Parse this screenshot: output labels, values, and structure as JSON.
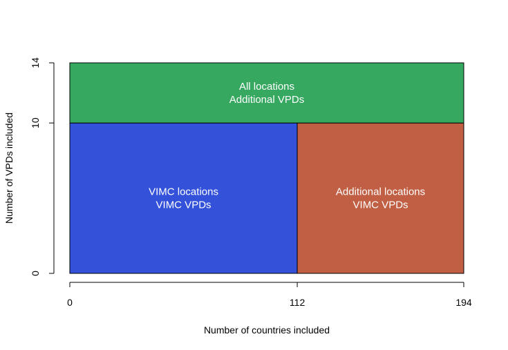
{
  "chart_data": {
    "type": "mosaic",
    "title": "",
    "xlabel": "Number of countries included",
    "ylabel": "Number of VPDs included",
    "xlim": [
      0,
      194
    ],
    "ylim": [
      0,
      14
    ],
    "x_ticks": [
      {
        "value": 0,
        "label": "0"
      },
      {
        "value": 112,
        "label": "112"
      },
      {
        "value": 194,
        "label": "194"
      }
    ],
    "y_ticks": [
      {
        "value": 0,
        "label": "0"
      },
      {
        "value": 10,
        "label": "10"
      },
      {
        "value": 14,
        "label": "14"
      }
    ],
    "regions": [
      {
        "x": [
          0,
          112
        ],
        "y": [
          0,
          10
        ],
        "color": "#3352d9",
        "label_lines": [
          "VIMC locations",
          "VIMC VPDs"
        ]
      },
      {
        "x": [
          112,
          194
        ],
        "y": [
          0,
          10
        ],
        "color": "#c05f44",
        "label_lines": [
          "Additional locations",
          "VIMC VPDs"
        ]
      },
      {
        "x": [
          0,
          194
        ],
        "y": [
          10,
          14
        ],
        "color": "#36a860",
        "label_lines": [
          "All locations",
          "Additional VPDs"
        ]
      }
    ],
    "grid": false,
    "legend": "none"
  }
}
